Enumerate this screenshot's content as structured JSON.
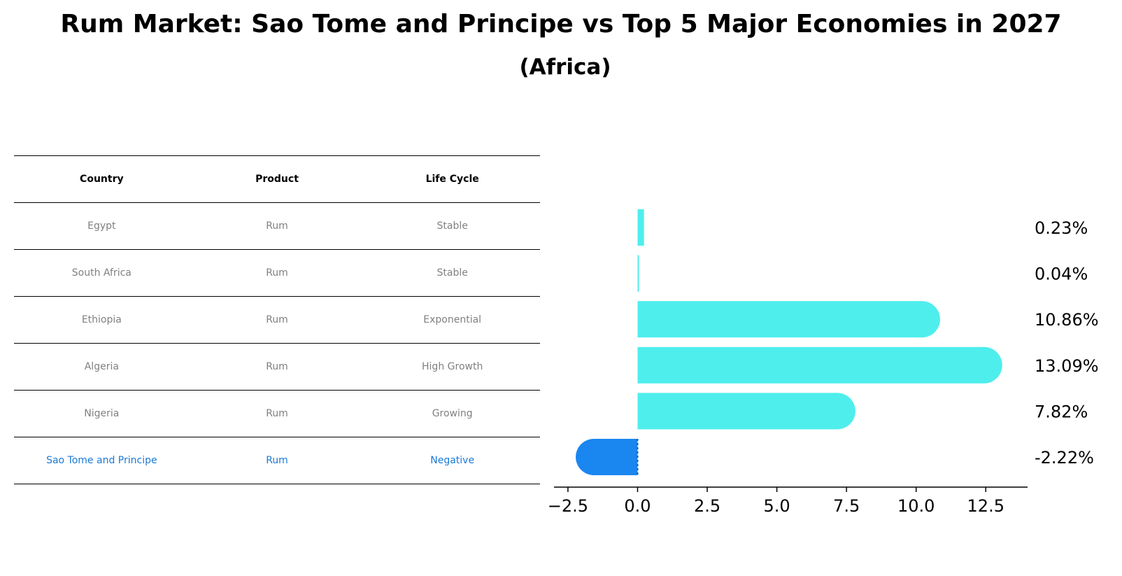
{
  "title": "Rum Market: Sao Tome and Principe vs Top 5 Major Economies in 2027",
  "subtitle": "(Africa)",
  "table": {
    "headers": [
      "Country",
      "Product",
      "Life Cycle"
    ],
    "rows": [
      [
        "Egypt",
        "Rum",
        "Stable"
      ],
      [
        "South Africa",
        "Rum",
        "Stable"
      ],
      [
        "Ethiopia",
        "Rum",
        "Exponential"
      ],
      [
        "Algeria",
        "Rum",
        "High Growth"
      ],
      [
        "Nigeria",
        "Rum",
        "Growing"
      ],
      [
        "Sao Tome and Principe",
        "Rum",
        "Negative"
      ]
    ]
  },
  "chart_data": {
    "type": "bar",
    "orientation": "horizontal",
    "categories": [
      "Egypt",
      "South Africa",
      "Ethiopia",
      "Algeria",
      "Nigeria",
      "Sao Tome and Principe"
    ],
    "values": [
      0.23,
      0.04,
      10.86,
      13.09,
      7.82,
      -2.22
    ],
    "value_labels": [
      "0.23%",
      "0.04%",
      "10.86%",
      "13.09%",
      "7.82%",
      "-2.22%"
    ],
    "highlight_index": 5,
    "colors": {
      "default": "#4eeeed",
      "highlight": "#1a86f0",
      "axis": "#000000",
      "text": "#000000"
    },
    "xticks": [
      -2.5,
      0.0,
      2.5,
      5.0,
      7.5,
      10.0,
      12.5
    ],
    "xtick_labels": [
      "−2.5",
      "0.0",
      "2.5",
      "5.0",
      "7.5",
      "10.0",
      "12.5"
    ],
    "xlim": [
      -3.0,
      14.0
    ],
    "xlabel": "",
    "ylabel": ""
  }
}
